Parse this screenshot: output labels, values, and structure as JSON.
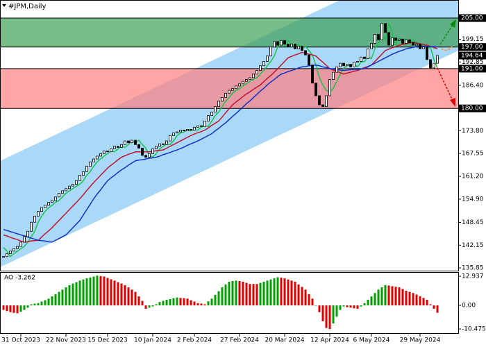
{
  "chart_data": [
    {
      "type": "candlestick",
      "title": "#JPM,Daily",
      "categories": [
        null,
        null,
        null,
        null,
        null,
        "31 Oct 2023",
        null,
        null,
        null,
        null,
        null,
        null,
        null,
        null,
        null,
        null,
        null,
        null,
        "22 Nov 2023",
        null,
        null,
        null,
        null,
        null,
        null,
        null,
        null,
        null,
        null,
        null,
        "15 Dec 2023",
        null,
        null,
        null,
        null,
        null,
        null,
        null,
        null,
        null,
        null,
        null,
        null,
        "10 Jan 2024",
        null,
        null,
        null,
        null,
        null,
        null,
        null,
        null,
        null,
        null,
        null,
        "2 Feb 2024",
        null,
        null,
        null,
        null,
        null,
        null,
        null,
        null,
        null,
        null,
        null,
        null,
        "27 Feb 2024",
        null,
        null,
        null,
        null,
        null,
        null,
        null,
        null,
        null,
        null,
        null,
        null,
        "20 Mar 2024",
        null,
        null,
        null,
        null,
        null,
        null,
        null,
        null,
        null,
        null,
        null,
        null,
        "12 Apr 2024",
        null,
        null,
        null,
        null,
        null,
        null,
        null,
        null,
        null,
        null,
        null,
        "6 May 2024",
        null,
        null,
        null,
        null,
        null,
        null,
        null,
        null,
        null,
        null,
        null,
        null,
        null,
        "29 May 2024",
        null,
        null,
        null,
        null,
        null
      ],
      "values": [
        139.0,
        139.8,
        140.5,
        141.2,
        141.8,
        143.0,
        144.5,
        146.0,
        148.5,
        150.2,
        151.5,
        152.5,
        153.2,
        154.0,
        154.5,
        155.5,
        156.5,
        157.2,
        157.8,
        158.5,
        159.0,
        160.0,
        161.5,
        162.5,
        164.0,
        165.2,
        166.0,
        166.8,
        167.5,
        168.2,
        168.0,
        168.8,
        169.5,
        169.2,
        170.0,
        171.0,
        170.5,
        171.2,
        170.0,
        169.0,
        167.0,
        166.5,
        167.5,
        168.8,
        169.5,
        170.2,
        170.0,
        171.0,
        172.5,
        173.2,
        173.5,
        174.0,
        173.8,
        174.2,
        174.0,
        174.8,
        175.2,
        175.0,
        176.5,
        178.0,
        179.0,
        180.5,
        182.0,
        183.0,
        184.2,
        185.0,
        185.5,
        186.2,
        186.8,
        187.5,
        188.0,
        188.5,
        189.5,
        190.5,
        191.8,
        193.0,
        194.5,
        197.0,
        198.5,
        197.5,
        198.8,
        197.8,
        197.0,
        197.8,
        196.5,
        197.2,
        196.0,
        194.8,
        192.0,
        187.0,
        183.5,
        181.0,
        180.5,
        183.5,
        188.0,
        190.0,
        191.5,
        192.5,
        191.8,
        192.2,
        191.5,
        192.8,
        193.0,
        194.2,
        193.8,
        196.5,
        198.0,
        200.5,
        199.0,
        203.5,
        201.0,
        197.5,
        199.5,
        198.8,
        199.2,
        198.0,
        199.0,
        198.2,
        197.5,
        197.8,
        196.5,
        197.0,
        193.5,
        191.2,
        192.5,
        194.64
      ],
      "color": "#000000",
      "lines": [
        {
          "color": "#19c24a",
          "values": [
            141.5,
            140.5,
            139.0,
            139.8,
            140.5,
            141.2,
            141.8,
            143.0,
            144.5,
            146.0,
            148.5,
            150.2,
            151.5,
            152.5,
            153.2,
            154.0,
            154.5,
            155.5,
            156.5,
            157.2,
            157.8,
            158.5,
            159.0,
            160.0,
            161.5,
            162.5,
            164.0,
            165.2,
            166.0,
            166.8,
            167.5,
            168.2,
            168.0,
            168.8,
            169.5,
            169.2,
            170.0,
            171.0,
            170.5,
            171.2,
            170.0,
            169.0,
            167.0,
            166.5,
            167.5,
            168.8,
            169.5,
            170.2,
            170.0,
            171.0,
            172.5,
            173.2,
            173.5,
            174.0,
            173.8,
            174.2,
            174.0,
            174.8,
            175.2,
            175.0,
            176.5,
            178.0,
            179.0,
            180.5,
            182.0,
            183.0,
            184.2,
            185.0,
            185.5,
            186.2,
            186.8,
            187.5,
            188.0,
            188.5,
            189.5,
            190.5,
            191.8,
            193.0,
            194.5,
            197.0,
            198.5,
            197.5,
            198.8,
            197.8,
            197.0,
            197.8,
            196.5,
            197.2,
            196.0,
            194.8,
            192.0,
            188.5,
            186.5,
            185.0,
            184.5,
            185.5,
            187.5,
            189.5,
            191.0,
            192.0,
            192.0,
            192.2,
            191.5,
            192.8,
            193.0,
            194.2,
            193.8,
            196.5,
            198.0,
            200.5,
            199.0,
            203.5,
            201.0,
            197.5,
            199.5,
            198.8,
            199.2,
            198.0,
            199.0,
            198.2,
            197.5,
            197.8,
            196.5,
            197.0,
            193.5,
            191.2
          ]
        },
        {
          "color": "#c0142c",
          "values": [
            145.0,
            144.7,
            144.3,
            144.0,
            143.7,
            143.3,
            143.0,
            143.1,
            143.3,
            143.4,
            143.5,
            144.4,
            145.3,
            146.1,
            147.0,
            148.0,
            149.0,
            150.0,
            151.0,
            152.0,
            153.0,
            154.0,
            155.0,
            156.1,
            157.3,
            158.4,
            159.5,
            160.5,
            161.5,
            162.5,
            163.5,
            164.3,
            165.0,
            165.8,
            166.5,
            166.9,
            167.3,
            167.6,
            168.0,
            168.0,
            168.0,
            168.0,
            168.0,
            168.1,
            168.3,
            168.4,
            168.5,
            169.0,
            169.5,
            170.0,
            170.5,
            171.0,
            171.5,
            172.0,
            172.5,
            172.9,
            173.3,
            173.6,
            174.0,
            174.6,
            175.3,
            175.9,
            176.5,
            177.6,
            178.8,
            179.9,
            181.0,
            181.8,
            182.5,
            183.3,
            184.0,
            184.6,
            185.3,
            185.9,
            186.5,
            187.4,
            188.3,
            189.1,
            190.0,
            191.0,
            192.0,
            193.0,
            194.0,
            194.4,
            194.8,
            195.1,
            195.5,
            195.3,
            195.0,
            194.8,
            194.5,
            193.6,
            192.8,
            191.9,
            191.0,
            190.6,
            190.3,
            189.9,
            189.5,
            189.8,
            190.0,
            190.3,
            190.5,
            190.9,
            191.3,
            191.6,
            192.0,
            193.0,
            194.0,
            195.0,
            196.0,
            196.4,
            196.8,
            197.1,
            197.5,
            197.7,
            197.9,
            198.1,
            198.3,
            198.1,
            197.9,
            197.7,
            197.5,
            197.2,
            196.8,
            196.5
          ]
        },
        {
          "color": "#1232c8",
          "values": [
            146.5,
            146.2,
            145.9,
            145.6,
            145.3,
            145.0,
            144.7,
            144.4,
            144.1,
            143.8,
            143.5,
            143.4,
            143.3,
            143.1,
            143.0,
            143.5,
            144.0,
            144.5,
            145.0,
            146.0,
            147.0,
            148.0,
            149.0,
            150.5,
            152.0,
            153.5,
            155.0,
            156.3,
            157.5,
            158.8,
            160.0,
            160.8,
            161.5,
            162.3,
            163.0,
            163.6,
            164.3,
            164.9,
            165.5,
            165.7,
            165.8,
            166.0,
            166.2,
            166.3,
            166.5,
            166.8,
            167.2,
            167.5,
            167.8,
            168.2,
            168.5,
            168.9,
            169.3,
            169.8,
            170.2,
            170.6,
            171.0,
            171.5,
            172.0,
            172.5,
            173.0,
            173.8,
            174.5,
            175.3,
            176.0,
            176.9,
            177.8,
            178.6,
            179.5,
            180.4,
            181.3,
            182.1,
            183.0,
            183.9,
            184.8,
            185.6,
            186.5,
            187.3,
            188.0,
            188.8,
            189.5,
            189.8,
            190.2,
            190.5,
            190.8,
            191.2,
            191.5,
            191.6,
            191.8,
            191.9,
            192.0,
            191.8,
            191.5,
            191.3,
            191.0,
            190.9,
            190.8,
            190.6,
            190.5,
            190.6,
            190.7,
            190.8,
            190.8,
            190.9,
            191.0,
            191.5,
            192.0,
            192.5,
            193.0,
            193.5,
            194.0,
            194.5,
            195.0,
            195.4,
            195.8,
            196.1,
            196.5,
            196.7,
            196.9,
            197.1,
            197.3,
            197.2,
            197.2,
            197.1,
            197.1,
            197.0
          ]
        }
      ],
      "levels": [
        {
          "value": 205,
          "label": "205.00"
        },
        {
          "value": 197,
          "label": "197.00"
        },
        {
          "value": 191,
          "label": "191.00"
        },
        {
          "value": 180,
          "label": "180.00"
        }
      ],
      "zones": [
        {
          "from": 197,
          "to": 205,
          "color": "#3f9f55"
        },
        {
          "from": 180,
          "to": 191,
          "color": "#ff7f7f"
        }
      ],
      "ylim": [
        135.1,
        210.0
      ],
      "yticks": [
        135.85,
        142.15,
        148.45,
        {
          "value": 154.9,
          "label": "154.90"
        },
        {
          "value": 161.2,
          "label": "161.20"
        },
        167.55,
        {
          "value": 173.8,
          "label": "173.80"
        },
        {
          "value": 186.4,
          "label": "186.40"
        },
        192.85,
        199.15
      ]
    },
    {
      "type": "bar",
      "title": "AO -3.262",
      "values": [
        -2,
        -2.5,
        -3,
        -3.3,
        -3.5,
        -2.8,
        -2,
        -1,
        0.5,
        0.8,
        1,
        1.7,
        2.3,
        3,
        4,
        5,
        6,
        7,
        8,
        9,
        9.7,
        10.3,
        11,
        11.5,
        12,
        12.4,
        12.8,
        13.2,
        13,
        12.8,
        12.2,
        11.6,
        11,
        10.3,
        9.7,
        9,
        8,
        7,
        6,
        4,
        2,
        -1.5,
        -1,
        -0.5,
        0.5,
        1.5,
        2,
        2.5,
        2.8,
        3.2,
        3.5,
        3.3,
        3.2,
        3,
        2.3,
        1.7,
        1,
        0.8,
        0.5,
        1.8,
        3,
        4.7,
        6.3,
        8,
        9.3,
        10.5,
        10.8,
        11,
        10.8,
        10.5,
        10,
        9.5,
        9.5,
        9.5,
        10,
        10.5,
        11,
        11.5,
        12,
        12.5,
        12.3,
        12,
        11.5,
        11,
        10.5,
        9.3,
        8.2,
        7,
        5,
        3,
        0,
        -3,
        -7,
        -10,
        -10.5,
        -8,
        -5,
        -2,
        -0.5,
        -0.8,
        -1,
        -1.3,
        -1.5,
        -0.5,
        1,
        2.5,
        4,
        5.5,
        7,
        8,
        9,
        8.8,
        8.5,
        8.3,
        8,
        7.3,
        6.5,
        6,
        5.5,
        4.8,
        4,
        3.3,
        2.5,
        0.5,
        -1.5,
        -3.262
      ],
      "up_color": "#00a000",
      "down_color": "#e00000",
      "ylim": [
        -12.3,
        14.8
      ],
      "yticks": [
        12.937,
        {
          "value": 0,
          "label": "0.00"
        },
        -10.475
      ]
    }
  ]
}
